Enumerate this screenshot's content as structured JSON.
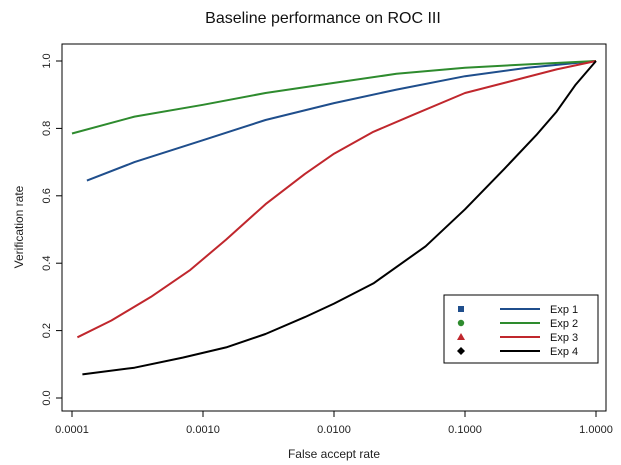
{
  "chart_data": {
    "type": "line",
    "title": "Baseline performance on ROC III",
    "xlabel": "False accept rate",
    "ylabel": "Verification rate",
    "xscale": "log",
    "xlim": [
      0.0001,
      1.0
    ],
    "ylim": [
      0.0,
      1.0
    ],
    "xticks": [
      0.0001,
      0.001,
      0.01,
      0.1,
      1.0
    ],
    "xtick_labels": [
      "0.0001",
      "0.0010",
      "0.0100",
      "0.1000",
      "1.0000"
    ],
    "yticks": [
      0.0,
      0.2,
      0.4,
      0.6,
      0.8,
      1.0
    ],
    "ytick_labels": [
      "0.0",
      "0.2",
      "0.4",
      "0.6",
      "0.8",
      "1.0"
    ],
    "grid": false,
    "legend_position": "bottom-right",
    "series": [
      {
        "name": "Exp 1",
        "color": "#1f4e8c",
        "marker": "square",
        "x": [
          0.00013,
          0.0003,
          0.001,
          0.003,
          0.01,
          0.03,
          0.1,
          0.3,
          1.0
        ],
        "y": [
          0.645,
          0.7,
          0.765,
          0.825,
          0.875,
          0.915,
          0.955,
          0.98,
          1.0
        ]
      },
      {
        "name": "Exp 2",
        "color": "#2e8b2e",
        "marker": "circle",
        "x": [
          0.0001,
          0.0003,
          0.001,
          0.003,
          0.01,
          0.03,
          0.1,
          0.3,
          1.0
        ],
        "y": [
          0.785,
          0.835,
          0.87,
          0.905,
          0.935,
          0.962,
          0.98,
          0.99,
          1.0
        ]
      },
      {
        "name": "Exp 3",
        "color": "#c0272d",
        "marker": "triangle",
        "x": [
          0.00011,
          0.0002,
          0.0004,
          0.0008,
          0.0015,
          0.003,
          0.006,
          0.01,
          0.02,
          0.04,
          0.1,
          0.2,
          0.5,
          1.0
        ],
        "y": [
          0.18,
          0.23,
          0.3,
          0.38,
          0.47,
          0.575,
          0.665,
          0.725,
          0.79,
          0.84,
          0.905,
          0.935,
          0.975,
          1.0
        ]
      },
      {
        "name": "Exp 4",
        "color": "#000000",
        "marker": "diamond",
        "x": [
          0.00012,
          0.0003,
          0.0007,
          0.0015,
          0.003,
          0.006,
          0.01,
          0.02,
          0.05,
          0.1,
          0.2,
          0.35,
          0.5,
          0.7,
          1.0
        ],
        "y": [
          0.07,
          0.09,
          0.12,
          0.15,
          0.19,
          0.24,
          0.28,
          0.34,
          0.45,
          0.56,
          0.68,
          0.78,
          0.85,
          0.93,
          1.0
        ]
      }
    ]
  }
}
